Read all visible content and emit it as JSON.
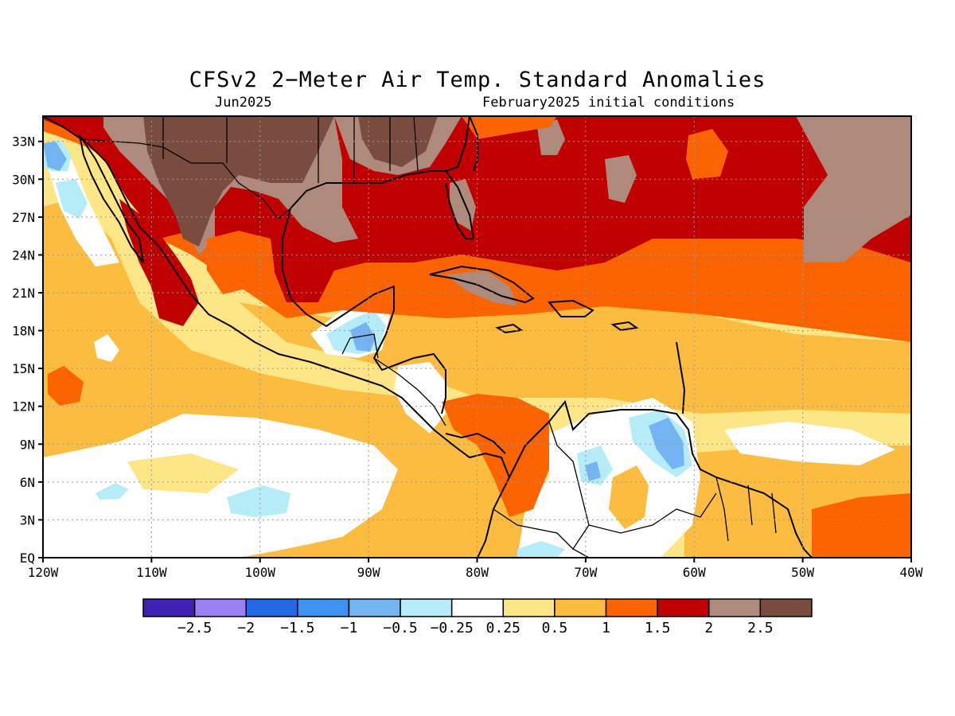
{
  "title": "CFSv2 2−Meter Air Temp. Standard Anomalies",
  "subtitle_left": "Jun2025",
  "subtitle_right": "February2025 initial conditions",
  "map": {
    "lat_range": [
      0,
      35
    ],
    "lon_range": [
      -120,
      -40
    ],
    "lat_ticks": [
      {
        "value": 33,
        "label": "33N"
      },
      {
        "value": 30,
        "label": "30N"
      },
      {
        "value": 27,
        "label": "27N"
      },
      {
        "value": 24,
        "label": "24N"
      },
      {
        "value": 21,
        "label": "21N"
      },
      {
        "value": 18,
        "label": "18N"
      },
      {
        "value": 15,
        "label": "15N"
      },
      {
        "value": 12,
        "label": "12N"
      },
      {
        "value": 9,
        "label": "9N"
      },
      {
        "value": 6,
        "label": "6N"
      },
      {
        "value": 3,
        "label": "3N"
      },
      {
        "value": 0,
        "label": "EQ"
      }
    ],
    "lon_ticks": [
      {
        "value": -120,
        "label": "120W"
      },
      {
        "value": -110,
        "label": "110W"
      },
      {
        "value": -100,
        "label": "100W"
      },
      {
        "value": -90,
        "label": "90W"
      },
      {
        "value": -80,
        "label": "80W"
      },
      {
        "value": -70,
        "label": "70W"
      },
      {
        "value": -60,
        "label": "60W"
      },
      {
        "value": -50,
        "label": "50W"
      },
      {
        "value": -40,
        "label": "40W"
      }
    ],
    "gridlines": "dotted"
  },
  "colorbar": {
    "colors": [
      "#3f22b3",
      "#9b80f5",
      "#2468e6",
      "#3f93f0",
      "#75b4f2",
      "#b5ecf8",
      "#ffffff",
      "#fde685",
      "#fbbc40",
      "#fb6400",
      "#c00000",
      "#ae8a7c",
      "#7a4c40"
    ],
    "labels": [
      "−2.5",
      "−2",
      "−1.5",
      "−1",
      "−0.5",
      "−0.25",
      "0.25",
      "0.5",
      "1",
      "1.5",
      "2",
      "2.5"
    ]
  },
  "colors": {
    "white": "#ffffff",
    "light_yellow": "#fde685",
    "orange_light": "#fbbc40",
    "orange": "#fb6400",
    "red": "#c00000",
    "brown_light": "#ae8a7c",
    "brown_dark": "#7a4c40",
    "cyan_light": "#b5ecf8",
    "blue_light": "#75b4f2",
    "blue": "#3f93f0"
  }
}
